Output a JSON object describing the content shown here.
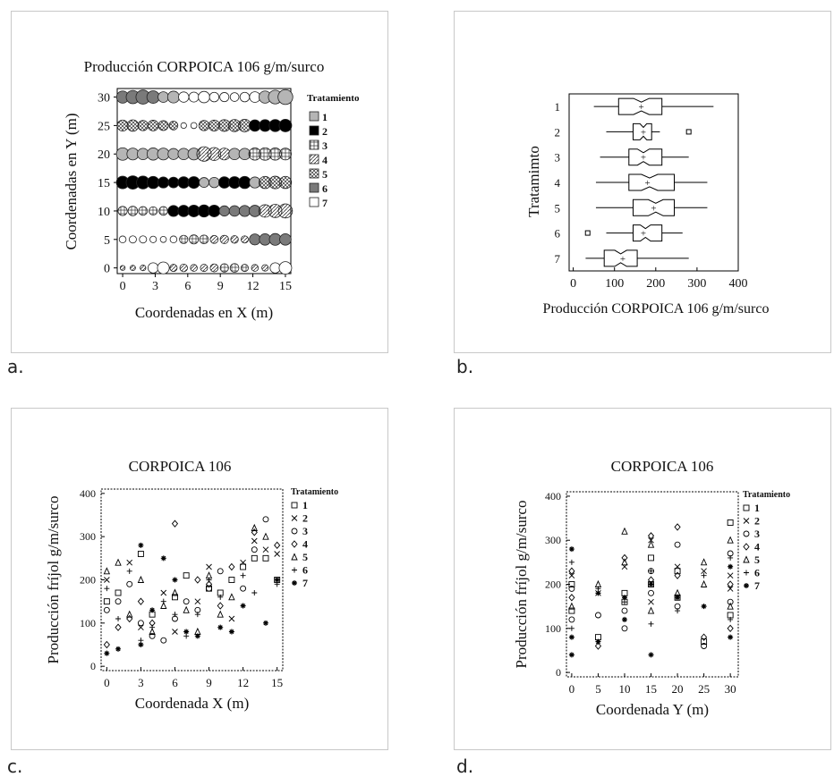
{
  "panel_labels": [
    "a.",
    "b.",
    "c.",
    "d."
  ],
  "chart_data": [
    {
      "id": "a",
      "type": "bubble-grid",
      "title": "Producción CORPOICA 106 g/m/surco",
      "xlabel": "Coordenadas en X (m)",
      "ylabel": "Coordenadas en Y (m)",
      "xticks": [
        0,
        3,
        6,
        9,
        12,
        15
      ],
      "yticks": [
        0,
        5,
        10,
        15,
        20,
        25,
        30
      ],
      "xlim": [
        -0.5,
        15.5
      ],
      "ylim": [
        -1,
        31.5
      ],
      "legend_title": "Tratamiento",
      "legend": [
        "1",
        "2",
        "3",
        "4",
        "5",
        "6",
        "7"
      ],
      "rows": [
        {
          "y": 30,
          "treatments": [
            6,
            6,
            6,
            6,
            1,
            1,
            7,
            7,
            7,
            7,
            7,
            7,
            7,
            7,
            1,
            1,
            1
          ],
          "values": [
            250,
            280,
            300,
            260,
            210,
            240,
            200,
            190,
            230,
            180,
            170,
            160,
            180,
            210,
            250,
            290,
            320
          ]
        },
        {
          "y": 25,
          "treatments": [
            5,
            5,
            5,
            5,
            5,
            5,
            7,
            7,
            5,
            5,
            5,
            5,
            5,
            2,
            2,
            2,
            2
          ],
          "values": [
            220,
            230,
            200,
            210,
            190,
            160,
            80,
            90,
            200,
            220,
            240,
            250,
            260,
            230,
            240,
            250,
            260
          ]
        },
        {
          "y": 20,
          "treatments": [
            1,
            1,
            1,
            1,
            1,
            1,
            1,
            1,
            4,
            4,
            4,
            1,
            1,
            3,
            3,
            3,
            3
          ],
          "values": [
            260,
            240,
            230,
            250,
            240,
            220,
            230,
            240,
            310,
            270,
            240,
            230,
            230,
            250,
            260,
            250,
            240
          ]
        },
        {
          "y": 15,
          "treatments": [
            2,
            2,
            2,
            2,
            2,
            2,
            2,
            2,
            1,
            1,
            2,
            2,
            2,
            1,
            5,
            5,
            5
          ],
          "values": [
            260,
            280,
            270,
            250,
            220,
            210,
            230,
            240,
            190,
            200,
            230,
            240,
            250,
            220,
            250,
            260,
            250
          ]
        },
        {
          "y": 10,
          "treatments": [
            3,
            3,
            3,
            3,
            3,
            2,
            2,
            2,
            2,
            2,
            6,
            6,
            6,
            6,
            4,
            4,
            4
          ],
          "values": [
            170,
            180,
            160,
            150,
            160,
            220,
            230,
            240,
            250,
            240,
            200,
            210,
            220,
            230,
            260,
            280,
            300
          ]
        },
        {
          "y": 5,
          "treatments": [
            7,
            7,
            7,
            7,
            7,
            7,
            3,
            3,
            3,
            4,
            4,
            4,
            4,
            6,
            6,
            6,
            6
          ],
          "values": [
            110,
            120,
            120,
            100,
            90,
            110,
            150,
            170,
            160,
            140,
            150,
            130,
            120,
            220,
            230,
            240,
            230
          ]
        },
        {
          "y": 0,
          "treatments": [
            4,
            4,
            4,
            7,
            7,
            4,
            4,
            4,
            4,
            4,
            3,
            3,
            3,
            4,
            4,
            7,
            7
          ],
          "values": [
            60,
            70,
            80,
            200,
            240,
            120,
            130,
            110,
            120,
            140,
            150,
            160,
            120,
            110,
            100,
            200,
            260
          ]
        }
      ]
    },
    {
      "id": "b",
      "type": "boxplot",
      "xlabel": "Producción CORPOICA 106 g/m/surco",
      "ylabel": "Tratamimto",
      "xticks": [
        0,
        100,
        200,
        300,
        400
      ],
      "xlim": [
        -10,
        400
      ],
      "categories": [
        "1",
        "2",
        "3",
        "4",
        "5",
        "6",
        "7"
      ],
      "boxes": [
        {
          "min": 50,
          "q1": 110,
          "median": 165,
          "q3": 215,
          "max": 340,
          "mean": 165,
          "outliers": []
        },
        {
          "min": 80,
          "q1": 145,
          "median": 170,
          "q3": 190,
          "max": 210,
          "mean": 170,
          "outliers": [
            280
          ]
        },
        {
          "min": 65,
          "q1": 135,
          "median": 170,
          "q3": 215,
          "max": 280,
          "mean": 170,
          "outliers": []
        },
        {
          "min": 55,
          "q1": 135,
          "median": 185,
          "q3": 245,
          "max": 325,
          "mean": 180,
          "outliers": []
        },
        {
          "min": 55,
          "q1": 145,
          "median": 200,
          "q3": 245,
          "max": 325,
          "mean": 195,
          "outliers": []
        },
        {
          "min": 80,
          "q1": 145,
          "median": 175,
          "q3": 215,
          "max": 265,
          "mean": 170,
          "outliers": [
            35
          ]
        },
        {
          "min": 30,
          "q1": 75,
          "median": 115,
          "q3": 155,
          "max": 280,
          "mean": 120,
          "outliers": []
        }
      ]
    },
    {
      "id": "c",
      "type": "scatter",
      "title": "CORPOICA 106",
      "xlabel": "Coordenada X (m)",
      "ylabel": "Producción fríjol g/m/surco",
      "xticks": [
        0,
        3,
        6,
        9,
        12,
        15
      ],
      "yticks": [
        0,
        100,
        200,
        300,
        400
      ],
      "xlim": [
        -0.5,
        15.5
      ],
      "ylim": [
        -10,
        410
      ],
      "legend_title": "Tratamiento",
      "legend": [
        "1",
        "2",
        "3",
        "4",
        "5",
        "6",
        "7"
      ],
      "series": [
        {
          "name": "1",
          "x": [
            0,
            1,
            3,
            4,
            6,
            7,
            9,
            10,
            11,
            12,
            13,
            14,
            15
          ],
          "y": [
            150,
            170,
            260,
            120,
            160,
            210,
            180,
            170,
            200,
            230,
            250,
            250,
            200
          ]
        },
        {
          "name": "2",
          "x": [
            0,
            2,
            3,
            5,
            6,
            8,
            9,
            11,
            12,
            13,
            14,
            15
          ],
          "y": [
            200,
            240,
            90,
            170,
            80,
            150,
            230,
            110,
            240,
            290,
            270,
            260
          ]
        },
        {
          "name": "3",
          "x": [
            0,
            1,
            2,
            3,
            4,
            5,
            6,
            7,
            8,
            9,
            10,
            12,
            13,
            14
          ],
          "y": [
            130,
            150,
            190,
            100,
            70,
            60,
            110,
            150,
            130,
            180,
            220,
            180,
            270,
            340
          ]
        },
        {
          "name": "4",
          "x": [
            0,
            1,
            2,
            3,
            4,
            6,
            8,
            9,
            10,
            11,
            13,
            15
          ],
          "y": [
            50,
            90,
            110,
            150,
            100,
            330,
            200,
            190,
            140,
            230,
            310,
            280
          ]
        },
        {
          "name": "5",
          "x": [
            0,
            1,
            2,
            3,
            4,
            5,
            6,
            7,
            8,
            9,
            10,
            11,
            13,
            14
          ],
          "y": [
            220,
            240,
            120,
            200,
            80,
            140,
            170,
            130,
            80,
            210,
            120,
            160,
            320,
            300
          ]
        },
        {
          "name": "6",
          "x": [
            0,
            1,
            2,
            3,
            4,
            5,
            6,
            7,
            8,
            9,
            10,
            12,
            13,
            15
          ],
          "y": [
            180,
            110,
            220,
            60,
            90,
            150,
            120,
            70,
            120,
            200,
            160,
            210,
            170,
            190
          ]
        },
        {
          "name": "7",
          "x": [
            0,
            1,
            3,
            3,
            4,
            5,
            6,
            7,
            8,
            10,
            11,
            12,
            14,
            15
          ],
          "y": [
            30,
            40,
            280,
            50,
            130,
            250,
            200,
            80,
            70,
            90,
            80,
            140,
            100,
            200
          ]
        }
      ]
    },
    {
      "id": "d",
      "type": "scatter",
      "title": "CORPOICA 106",
      "xlabel": "Coordenada Y (m)",
      "ylabel": "Producción fríjol g/m/surco",
      "xticks": [
        0,
        5,
        10,
        15,
        20,
        25,
        30
      ],
      "yticks": [
        0,
        100,
        200,
        300,
        400
      ],
      "xlim": [
        -1,
        31.5
      ],
      "ylim": [
        -10,
        410
      ],
      "legend_title": "Tratamiento",
      "legend": [
        "1",
        "2",
        "3",
        "4",
        "5",
        "6",
        "7"
      ],
      "series": [
        {
          "name": "1",
          "x": [
            0,
            0,
            5,
            10,
            10,
            15,
            15,
            20,
            20,
            25,
            30,
            30
          ],
          "y": [
            200,
            140,
            80,
            160,
            180,
            200,
            260,
            170,
            230,
            70,
            130,
            340
          ]
        },
        {
          "name": "2",
          "x": [
            0,
            5,
            10,
            15,
            15,
            20,
            25,
            30,
            30
          ],
          "y": [
            220,
            180,
            240,
            300,
            160,
            240,
            230,
            190,
            220
          ]
        },
        {
          "name": "3",
          "x": [
            0,
            0,
            5,
            10,
            10,
            15,
            15,
            20,
            20,
            25,
            30,
            30
          ],
          "y": [
            190,
            120,
            130,
            100,
            140,
            180,
            230,
            290,
            150,
            60,
            160,
            270
          ]
        },
        {
          "name": "4",
          "x": [
            0,
            0,
            5,
            10,
            15,
            15,
            20,
            20,
            25,
            30,
            30
          ],
          "y": [
            170,
            230,
            60,
            260,
            310,
            210,
            330,
            220,
            80,
            100,
            200
          ]
        },
        {
          "name": "5",
          "x": [
            0,
            5,
            10,
            10,
            15,
            15,
            20,
            25,
            25,
            30,
            30
          ],
          "y": [
            150,
            200,
            320,
            250,
            290,
            140,
            180,
            250,
            200,
            300,
            150
          ]
        },
        {
          "name": "6",
          "x": [
            0,
            0,
            5,
            10,
            15,
            15,
            20,
            25,
            30,
            30
          ],
          "y": [
            100,
            250,
            190,
            160,
            110,
            230,
            140,
            220,
            120,
            260
          ]
        },
        {
          "name": "7",
          "x": [
            0,
            0,
            0,
            5,
            5,
            10,
            10,
            15,
            15,
            20,
            25,
            30,
            30
          ],
          "y": [
            40,
            80,
            280,
            70,
            180,
            120,
            170,
            40,
            200,
            170,
            150,
            80,
            240
          ]
        }
      ]
    }
  ]
}
